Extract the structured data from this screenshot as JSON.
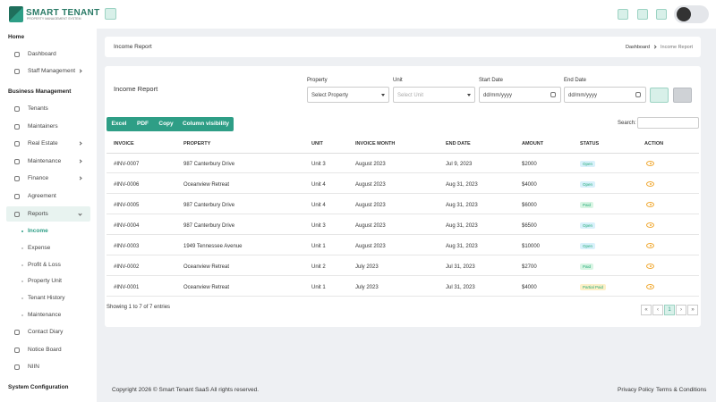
{
  "brand": {
    "name": "SMART TENANT",
    "tagline": "PROPERTY MANAGEMENT SYSTEM"
  },
  "sidebar": {
    "home": {
      "heading": "Home",
      "items": [
        "Dashboard",
        "Staff Management"
      ]
    },
    "business": {
      "heading": "Business Management",
      "items": [
        "Tenants",
        "Maintainers",
        "Real Estate",
        "Maintenance",
        "Finance",
        "Agreement",
        "Reports"
      ]
    },
    "reports_sub": [
      "Income",
      "Expense",
      "Profit & Loss",
      "Property Unit",
      "Tenant History",
      "Maintenance"
    ],
    "more": [
      "Contact Diary",
      "Notice Board",
      "NIIN"
    ],
    "system": {
      "heading": "System Configuration"
    }
  },
  "breadcrumb": {
    "title": "Income Report",
    "links": [
      "Dashboard",
      "Income Report"
    ]
  },
  "filters": {
    "title": "Income Report",
    "property": {
      "label": "Property",
      "placeholder": "Select Property"
    },
    "unit": {
      "label": "Unit",
      "placeholder": "Select Unit"
    },
    "start": {
      "label": "Start Date",
      "placeholder": "dd/mm/yyyy"
    },
    "end": {
      "label": "End Date",
      "placeholder": "dd/mm/yyyy"
    }
  },
  "buttons": [
    "Excel",
    "PDF",
    "Copy",
    "Column visibility"
  ],
  "search_label": "Search:",
  "table": {
    "headers": [
      "INVOICE",
      "PROPERTY",
      "UNIT",
      "INVOICE MONTH",
      "END DATE",
      "AMOUNT",
      "STATUS",
      "ACTION"
    ],
    "rows": [
      [
        "#INV-0007",
        "987 Canterbury Drive",
        "Unit 3",
        "August 2023",
        "Jul 9, 2023",
        "$2000",
        "Open"
      ],
      [
        "#INV-0006",
        "Oceanview Retreat",
        "Unit 4",
        "August 2023",
        "Aug 31, 2023",
        "$4000",
        "Open"
      ],
      [
        "#INV-0005",
        "987 Canterbury Drive",
        "Unit 4",
        "August 2023",
        "Aug 31, 2023",
        "$6000",
        "Paid"
      ],
      [
        "#INV-0004",
        "987 Canterbury Drive",
        "Unit 3",
        "August 2023",
        "Aug 31, 2023",
        "$6500",
        "Open"
      ],
      [
        "#INV-0003",
        "1949 Tennessee Avenue",
        "Unit 1",
        "August 2023",
        "Aug 31, 2023",
        "$10000",
        "Open"
      ],
      [
        "#INV-0002",
        "Oceanview Retreat",
        "Unit 2",
        "July 2023",
        "Jul 31, 2023",
        "$2700",
        "Paid"
      ],
      [
        "#INV-0001",
        "Oceanview Retreat",
        "Unit 1",
        "July 2023",
        "Jul 31, 2023",
        "$4000",
        "Partial Paid"
      ]
    ],
    "status_colors": [
      "#d9f1fb",
      "#d9f1fb",
      "#d8f5e3",
      "#d9f1fb",
      "#d9f1fb",
      "#d8f5e3",
      "#fdf0c8"
    ]
  },
  "info": "Showing 1 to 7 of 7 entries",
  "pagination": [
    "«",
    "‹",
    "1",
    "›",
    "»"
  ],
  "footer": {
    "copyright": "Copyright 2026 © Smart Tenant SaaS All rights reserved.",
    "links": [
      "Privacy Policy",
      "Terms & Conditions"
    ]
  }
}
